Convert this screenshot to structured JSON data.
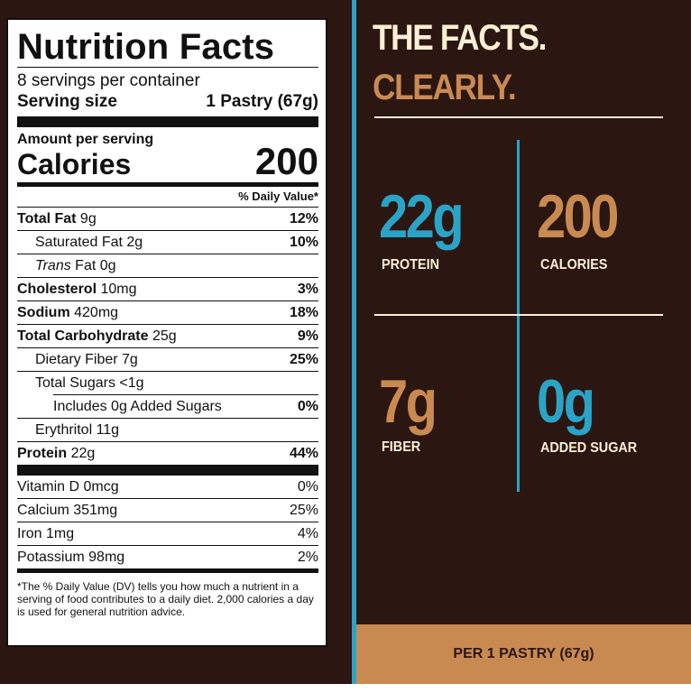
{
  "label": {
    "title": "Nutrition Facts",
    "servings": "8 servings per container",
    "serving_size_label": "Serving size",
    "serving_size_value": "1 Pastry (67g)",
    "amount_per_serving": "Amount per serving",
    "calories_label": "Calories",
    "calories_value": "200",
    "dv_header": "% Daily Value*",
    "nutrients": [
      {
        "name": "Total Fat",
        "amount": " 9g",
        "pct": "12%"
      },
      {
        "name": "Saturated Fat",
        "amount": " 2g",
        "pct": "10%"
      },
      {
        "name": "Trans",
        "amount": " Fat 0g",
        "pct": ""
      },
      {
        "name": "Cholesterol",
        "amount": " 10mg",
        "pct": "3%"
      },
      {
        "name": "Sodium",
        "amount": " 420mg",
        "pct": "18%"
      },
      {
        "name": "Total Carbohydrate",
        "amount": " 25g",
        "pct": "9%"
      },
      {
        "name": "Dietary Fiber",
        "amount": " 7g",
        "pct": "25%"
      },
      {
        "name": "Total Sugars",
        "amount": " <1g",
        "pct": ""
      },
      {
        "name": "Includes 0g Added Sugars",
        "amount": "",
        "pct": "0%"
      },
      {
        "name": "Erythritol",
        "amount": " 11g",
        "pct": ""
      },
      {
        "name": "Protein",
        "amount": " 22g",
        "pct": "44%"
      }
    ],
    "vitamins": [
      {
        "name": "Vitamin D 0mcg",
        "pct": "0%"
      },
      {
        "name": "Calcium 351mg",
        "pct": "25%"
      },
      {
        "name": "Iron 1mg",
        "pct": "4%"
      },
      {
        "name": "Potassium 98mg",
        "pct": "2%"
      }
    ],
    "footnote": "*The % Daily Value (DV) tells you how much a nutrient in a serving of food contributes to a daily diet. 2,000 calories a day is used for general nutrition advice."
  },
  "facts": {
    "heading_line1": "THE FACTS.",
    "heading_line2": "CLEARLY.",
    "stats": [
      {
        "value": "22g",
        "label": "PROTEIN",
        "color": "#2aa4c6"
      },
      {
        "value": "200",
        "label": "CALORIES",
        "color": "#c98a52"
      },
      {
        "value": "7g",
        "label": "FIBER",
        "color": "#c98a52"
      },
      {
        "value": "0g",
        "label": "ADDED SUGAR",
        "color": "#2aa4c6"
      }
    ],
    "footer": "PER 1 PASTRY (67g)"
  }
}
